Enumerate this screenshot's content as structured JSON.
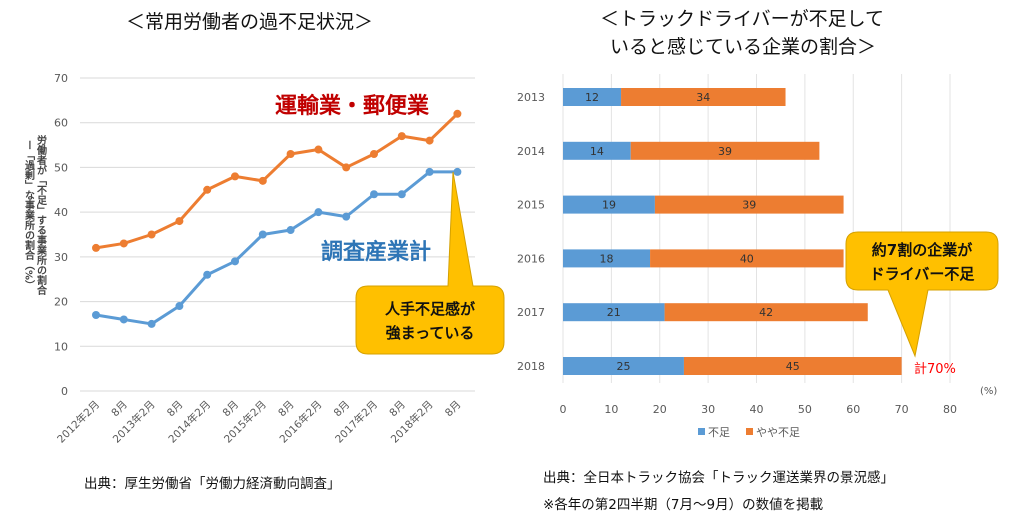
{
  "chart_data": [
    {
      "type": "line",
      "title": "＜常用労働者の過不足状況＞",
      "ylabel": "労働者が「不足」する事業所の割合 ー「過剰」な事業所の割合（%）",
      "ylim": [
        0,
        70
      ],
      "yticks": [
        0,
        10,
        20,
        30,
        40,
        50,
        60,
        70
      ],
      "categories": [
        "2012年2月",
        "8月",
        "2013年2月",
        "8月",
        "2014年2月",
        "8月",
        "2015年2月",
        "8月",
        "2016年2月",
        "8月",
        "2017年2月",
        "8月",
        "2018年2月",
        "8月"
      ],
      "series": [
        {
          "name": "運輸業・郵便業",
          "color": "#ed7d31",
          "label_color": "#c00000",
          "values": [
            32,
            33,
            35,
            38,
            45,
            48,
            47,
            53,
            54,
            50,
            53,
            57,
            56,
            62
          ]
        },
        {
          "name": "調査産業計",
          "color": "#5b9bd5",
          "label_color": "#2e75b6",
          "values": [
            17,
            16,
            15,
            19,
            26,
            29,
            35,
            36,
            40,
            39,
            44,
            44,
            49,
            49
          ]
        }
      ],
      "callout": {
        "lines": [
          "人手不足感が",
          "強まっている"
        ],
        "fill": "#ffc000"
      },
      "grid": true,
      "source": "出典：厚生労働省「労働力経済動向調査」"
    },
    {
      "type": "bar",
      "orientation": "horizontal",
      "stacked": true,
      "title_lines": [
        "＜トラックドライバーが不足して",
        "いると感じている企業の割合＞"
      ],
      "categories": [
        "2013",
        "2014",
        "2015",
        "2016",
        "2017",
        "2018"
      ],
      "xlim": [
        0,
        80
      ],
      "xticks": [
        0,
        10,
        20,
        30,
        40,
        50,
        60,
        70,
        80
      ],
      "xunit": "(%)",
      "series": [
        {
          "name": "不足",
          "color": "#5b9bd5",
          "values": [
            12,
            14,
            19,
            18,
            21,
            25
          ]
        },
        {
          "name": "やや不足",
          "color": "#ed7d31",
          "values": [
            34,
            39,
            39,
            40,
            42,
            45
          ]
        }
      ],
      "legend": "bottom",
      "callout": {
        "lines": [
          "約7割の企業が",
          "ドライバー不足"
        ],
        "fill": "#ffc000"
      },
      "total_note": "計70%",
      "total_color": "#ff0000",
      "source": "出典：全日本トラック協会「トラック運送業界の景況感」",
      "note": "※各年の第2四半期（7月～9月）の数値を掲載"
    }
  ]
}
